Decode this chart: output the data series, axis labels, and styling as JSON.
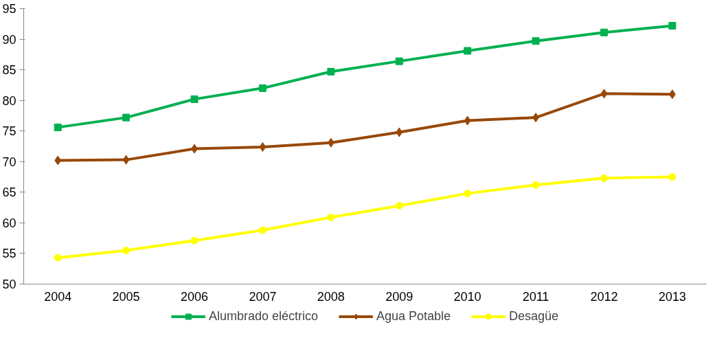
{
  "chart_data": {
    "type": "line",
    "categories": [
      "2004",
      "2005",
      "2006",
      "2007",
      "2008",
      "2009",
      "2010",
      "2011",
      "2012",
      "2013"
    ],
    "ylim": [
      50,
      95
    ],
    "yticks": [
      50,
      55,
      60,
      65,
      70,
      75,
      80,
      85,
      90,
      95
    ],
    "grid": false,
    "legend": "bottom",
    "line_style": "solid",
    "series": [
      {
        "name": "Alumbrado eléctrico",
        "color": "#00b050",
        "marker": "square",
        "values": [
          75.6,
          77.2,
          80.2,
          82.0,
          84.7,
          86.4,
          88.1,
          89.7,
          91.1,
          92.2
        ]
      },
      {
        "name": "Agua Potable",
        "color": "#984807",
        "marker": "diamond",
        "values": [
          70.2,
          70.3,
          72.1,
          72.4,
          73.1,
          74.8,
          76.7,
          77.2,
          81.1,
          81.0
        ]
      },
      {
        "name": "Desagüe",
        "color": "#ffff00",
        "marker": "circle",
        "values": [
          54.3,
          55.5,
          57.1,
          58.8,
          60.9,
          62.8,
          64.8,
          66.2,
          67.3,
          67.5
        ]
      }
    ]
  }
}
